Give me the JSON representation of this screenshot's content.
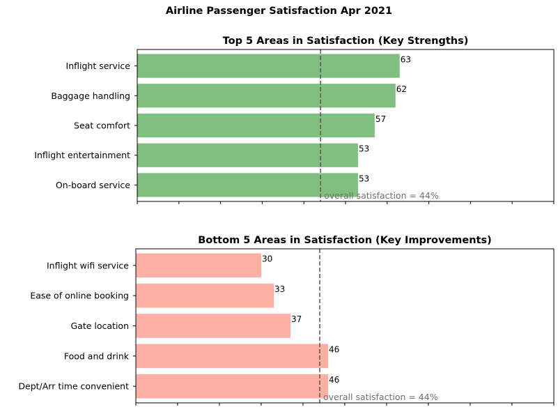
{
  "suptitle": "Airline Passenger Satisfaction Apr 2021",
  "chart_data": [
    {
      "type": "bar",
      "orientation": "horizontal",
      "title": "Top 5 Areas in Satisfaction (Key Strengths)",
      "categories": [
        "Inflight service",
        "Baggage handling",
        "Seat comfort",
        "Inflight entertainment",
        "On-board service"
      ],
      "values": [
        63,
        62,
        57,
        53,
        53
      ],
      "value_labels": [
        "63",
        "62",
        "57",
        "53",
        "53"
      ],
      "xlim": [
        0,
        100
      ],
      "reference_line": {
        "value": 44,
        "label": "overall satisfaction = 44%"
      },
      "bar_color": "#80bf80",
      "xlabel": "",
      "ylabel": ""
    },
    {
      "type": "bar",
      "orientation": "horizontal",
      "title": "Bottom 5 Areas in Satisfaction (Key Improvements)",
      "categories": [
        "Inflight wifi service",
        "Ease of online booking",
        "Gate location",
        "Food and drink",
        "Dept/Arr time convenient"
      ],
      "values": [
        30,
        33,
        37,
        46,
        46
      ],
      "value_labels": [
        "30",
        "33",
        "37",
        "46",
        "46"
      ],
      "xlim": [
        0,
        100
      ],
      "reference_line": {
        "value": 44,
        "label": "overall satisfaction = 44%"
      },
      "bar_color": "#ffafa3",
      "xlabel": "",
      "ylabel": ""
    }
  ]
}
